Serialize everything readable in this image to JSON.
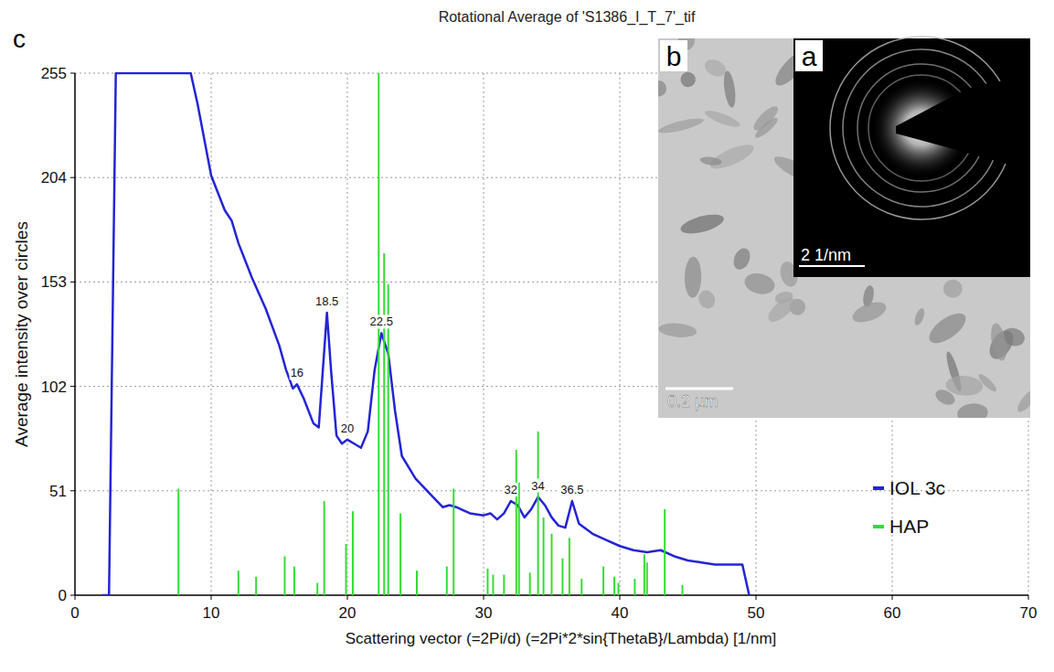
{
  "chart_data": {
    "type": "line",
    "panel_label": "c",
    "title": "Rotational Average of 'S1386_I_T_7'_tif",
    "x_label": "Scattering vector (=2Pi/d) (=2Pi*2*sin{ThetaB}/Lambda) [1/nm]",
    "y_label": "Average intensity over circles",
    "xlim": [
      0,
      70
    ],
    "xticks": [
      0,
      10,
      20,
      30,
      40,
      50,
      60,
      70
    ],
    "ylim": [
      0,
      255
    ],
    "yticks": [
      0,
      51,
      102,
      153,
      204,
      255
    ],
    "grid": true,
    "legend": "right",
    "series": [
      {
        "name": "IOL 3c",
        "color": "#2424d6",
        "type": "line",
        "x": [
          2.0,
          2.5,
          3.0,
          8.5,
          9,
          10,
          11,
          11.5,
          12,
          13,
          14,
          15,
          15.5,
          16,
          16.3,
          16.8,
          17.5,
          17.9,
          18.2,
          18.5,
          18.8,
          19.2,
          19.6,
          20,
          20.5,
          21,
          21.5,
          22,
          22.5,
          23,
          23.5,
          24,
          25,
          26,
          27,
          27.5,
          28,
          29,
          30,
          30.5,
          31,
          31.5,
          32,
          32.5,
          33,
          33.5,
          34,
          34.5,
          35,
          35.5,
          36,
          36.5,
          37,
          38,
          39,
          40,
          41,
          42,
          43,
          44,
          45,
          46,
          47,
          48,
          49,
          49.5
        ],
        "values": [
          0,
          0,
          255,
          255,
          240,
          205,
          188,
          183,
          172,
          155,
          140,
          122,
          110,
          101,
          103,
          96,
          84,
          82,
          110,
          138,
          110,
          78,
          74,
          76,
          74,
          72,
          80,
          110,
          128,
          118,
          90,
          68,
          57,
          50,
          43,
          44,
          43,
          40,
          39,
          40,
          37,
          40,
          46,
          44,
          38,
          42,
          48,
          44,
          38,
          34,
          33,
          46,
          35,
          30,
          27,
          24,
          22,
          21,
          22,
          19,
          17,
          16,
          15,
          15,
          15,
          0
        ]
      },
      {
        "name": "HAP",
        "color": "#33dd33",
        "type": "stem",
        "x": [
          7.6,
          12,
          13.3,
          15.4,
          16.1,
          17.8,
          18.3,
          19.9,
          20.4,
          22.3,
          22.7,
          23.0,
          23.9,
          25.1,
          27.3,
          27.8,
          30.3,
          30.7,
          31.5,
          32.4,
          32.6,
          33.4,
          34.0,
          34.4,
          35.0,
          35.8,
          36.3,
          37.2,
          38.8,
          39.6,
          39.9,
          41.1,
          41.8,
          42.0,
          43.3,
          44.6
        ],
        "values": [
          52,
          12,
          9,
          19,
          14,
          6,
          46,
          25,
          41,
          255,
          167,
          152,
          40,
          12,
          14,
          52,
          13,
          10,
          10,
          71,
          55,
          11,
          80,
          38,
          30,
          18,
          28,
          8,
          14,
          9,
          6,
          8,
          20,
          16,
          42,
          5
        ]
      }
    ],
    "annotations": [
      {
        "text": "16",
        "x": 16.3,
        "y": 103
      },
      {
        "text": "18.5",
        "x": 18.5,
        "y": 138
      },
      {
        "text": "20",
        "x": 20,
        "y": 76
      },
      {
        "text": "22.5",
        "x": 22.5,
        "y": 128
      },
      {
        "text": "32",
        "x": 32,
        "y": 46
      },
      {
        "text": "34",
        "x": 34,
        "y": 48
      },
      {
        "text": "36.5",
        "x": 36.5,
        "y": 46
      }
    ],
    "insets": [
      {
        "label": "b",
        "scale_bar": "0.2 µm"
      },
      {
        "label": "a",
        "scale_bar": "2 1/nm"
      }
    ]
  }
}
